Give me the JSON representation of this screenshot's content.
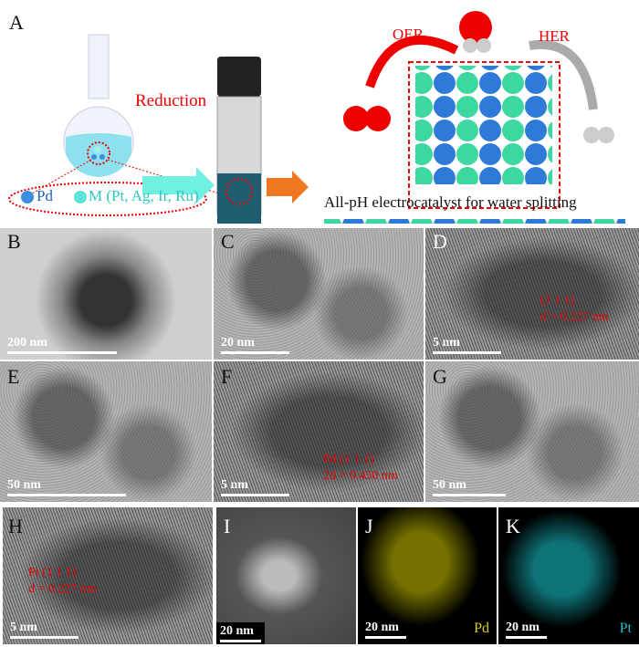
{
  "panel_a": {
    "label": "A",
    "reduction": "Reduction",
    "legend_pd": "Pd",
    "legend_m": "M (Pt, Ag, Ir, Ru)",
    "oer": "OER",
    "her": "HER",
    "caption": "All-pH electrocatalyst for water splitting"
  },
  "panels": [
    {
      "label": "B",
      "scale": "200 nm"
    },
    {
      "label": "C",
      "scale": "20 nm"
    },
    {
      "label": "D",
      "scale": "5 nm",
      "ann1": "(1 1 1)",
      "ann2": "d = 0.227 nm"
    },
    {
      "label": "E",
      "scale": "50 nm"
    },
    {
      "label": "F",
      "scale": "5 nm",
      "ann1": "Pd (1 1 1)",
      "ann2": "2d = 0.450 nm"
    },
    {
      "label": "G",
      "scale": "50 nm"
    },
    {
      "label": "H",
      "scale": "5 nm",
      "ann1": "Pt (1 1 1)",
      "ann2": "d = 0.227 nm"
    },
    {
      "label": "I",
      "scale": "20 nm"
    },
    {
      "label": "J",
      "scale": "20 nm",
      "element": "Pd"
    },
    {
      "label": "K",
      "scale": "20 nm",
      "element": "Pt"
    }
  ],
  "colors": {
    "pd": "#3a8ee0",
    "m": "#5fe3d8",
    "oer": "#e00000",
    "her": "#b0b0b0",
    "pd_map": "#d8d000",
    "pt_map": "#18c0c8"
  }
}
